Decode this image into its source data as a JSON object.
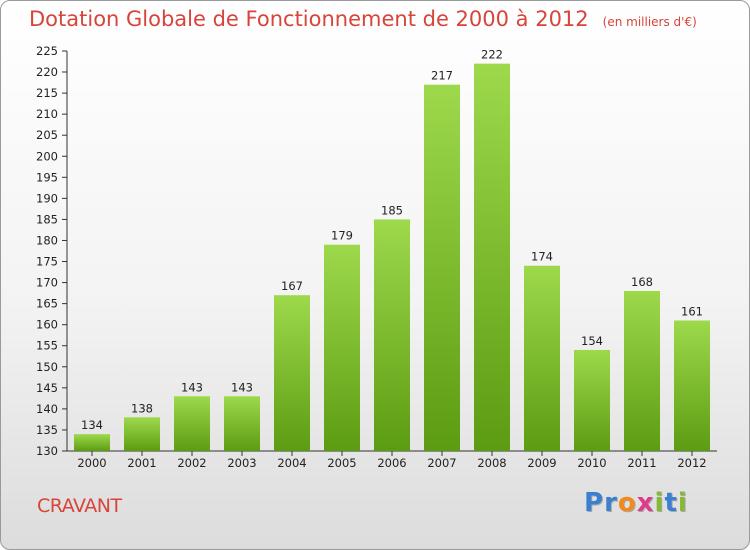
{
  "title": "Dotation Globale de Fonctionnement de 2000 à 2012",
  "subtitle": "(en milliers d'€)",
  "commune": "CRAVANT",
  "logo": {
    "text": "Proxiti",
    "letters": [
      {
        "ch": "P",
        "color": "#3a7fd0"
      },
      {
        "ch": "r",
        "color": "#3a7fd0"
      },
      {
        "ch": "o",
        "color": "#f08a1c"
      },
      {
        "ch": "x",
        "color": "#e03a8c"
      },
      {
        "ch": "i",
        "color": "#86b935"
      },
      {
        "ch": "t",
        "color": "#3a7fd0"
      },
      {
        "ch": "i",
        "color": "#86b935"
      }
    ]
  },
  "colors": {
    "accent": "#d8443a",
    "bar_top": "#9ed94c",
    "bar_bottom": "#5c9c12"
  },
  "chart_data": {
    "type": "bar",
    "categories": [
      "2000",
      "2001",
      "2002",
      "2003",
      "2004",
      "2005",
      "2006",
      "2007",
      "2008",
      "2009",
      "2010",
      "2011",
      "2012"
    ],
    "values": [
      134,
      138,
      143,
      143,
      167,
      179,
      185,
      217,
      222,
      174,
      154,
      168,
      161
    ],
    "title": "Dotation Globale de Fonctionnement de 2000 à 2012",
    "xlabel": "",
    "ylabel": "",
    "ylim": [
      130,
      225
    ],
    "yticks": [
      130,
      135,
      140,
      145,
      150,
      155,
      160,
      165,
      170,
      175,
      180,
      185,
      190,
      195,
      200,
      205,
      210,
      215,
      220,
      225
    ],
    "grid": false,
    "legend": "none"
  }
}
